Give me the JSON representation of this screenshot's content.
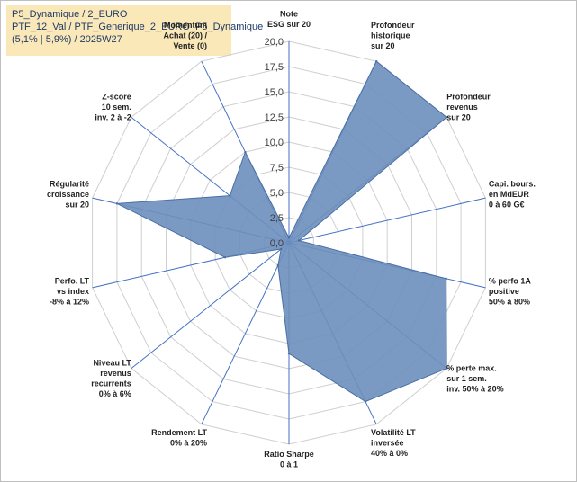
{
  "info": {
    "line1": "P5_Dynamique / 2_EURO",
    "line2": "PTF_12_Val / PTF_Generique_2_EURO_P5_Dynamique",
    "line3": "(5,1% | 5,9%) / 2025W27"
  },
  "chart_data": {
    "type": "radar",
    "r_min": 0,
    "r_max": 20,
    "ticks": [
      "0,0",
      "2,5",
      "5,0",
      "7,5",
      "10,0",
      "12,5",
      "15,0",
      "17,5",
      "20,0"
    ],
    "fill_color": "#6d8fbd",
    "line_color": "#4a6fa5",
    "axes": [
      {
        "label": [
          "Note",
          "ESG sur 20"
        ],
        "value": 0.5
      },
      {
        "label": [
          "Profondeur",
          "historique",
          "sur 20"
        ],
        "value": 20
      },
      {
        "label": [
          "Profondeur",
          "revenus",
          "sur 20"
        ],
        "value": 20
      },
      {
        "label": [
          "Capi. bours.",
          "en MdEUR",
          "0 à 60 G€"
        ],
        "value": 1
      },
      {
        "label": [
          "% perfo 1A",
          "positive",
          "50% à 80%"
        ],
        "value": 16
      },
      {
        "label": [
          "% perte max.",
          "sur 1 sem.",
          "inv. 50% à 20%"
        ],
        "value": 20
      },
      {
        "label": [
          "Volatilité LT",
          "inversée",
          "40% à 0%"
        ],
        "value": 17.5
      },
      {
        "label": [
          "Ratio Sharpe",
          "0 à 1"
        ],
        "value": 11
      },
      {
        "label": [
          "Rendement LT",
          "0% à 20%"
        ],
        "value": 2.5
      },
      {
        "label": [
          "Niveau LT",
          "revenus",
          "recurrents",
          "0% à 6%"
        ],
        "value": 1
      },
      {
        "label": [
          "Perfo. LT",
          "vs index",
          "-8% à 12%"
        ],
        "value": 6.5
      },
      {
        "label": [
          "Régularité",
          "croissance",
          "sur 20"
        ],
        "value": 17.5
      },
      {
        "label": [
          "Z-score",
          "10 sem.",
          "inv. 2 à -2"
        ],
        "value": 7.5
      },
      {
        "label": [
          "Momentum",
          "Achat (20) /",
          "Vente (0)"
        ],
        "value": 10
      }
    ]
  }
}
